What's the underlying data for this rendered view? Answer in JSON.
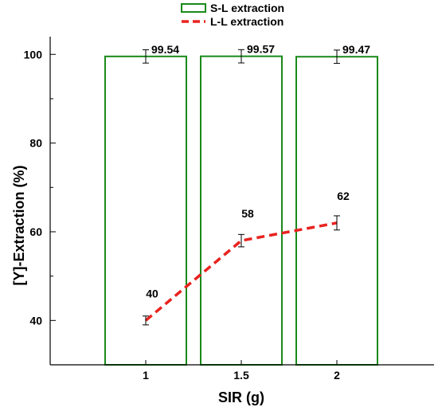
{
  "chart_data": {
    "type": "bar",
    "categories": [
      "1",
      "1.5",
      "2"
    ],
    "xlabel": "SIR (g)",
    "ylabel": "[Y]-Extraction (%)",
    "ylim": [
      30,
      104
    ],
    "yticks": [
      40,
      60,
      80,
      100
    ],
    "grid": false,
    "legend_position": "top-center",
    "series": [
      {
        "name": "S-L extraction",
        "kind": "bar",
        "color": "#1a8a1a",
        "fill": "none",
        "values": [
          99.54,
          99.57,
          99.47
        ],
        "error": [
          1.5,
          1.5,
          1.5
        ],
        "labels": [
          "99.54",
          "99.57",
          "99.47"
        ]
      },
      {
        "name": "L-L extraction",
        "kind": "line",
        "style": "dashed",
        "color": "#e8231f",
        "values": [
          40,
          58,
          62
        ],
        "error": [
          1.0,
          1.4,
          1.6
        ],
        "labels": [
          "40",
          "58",
          "62"
        ]
      }
    ]
  }
}
